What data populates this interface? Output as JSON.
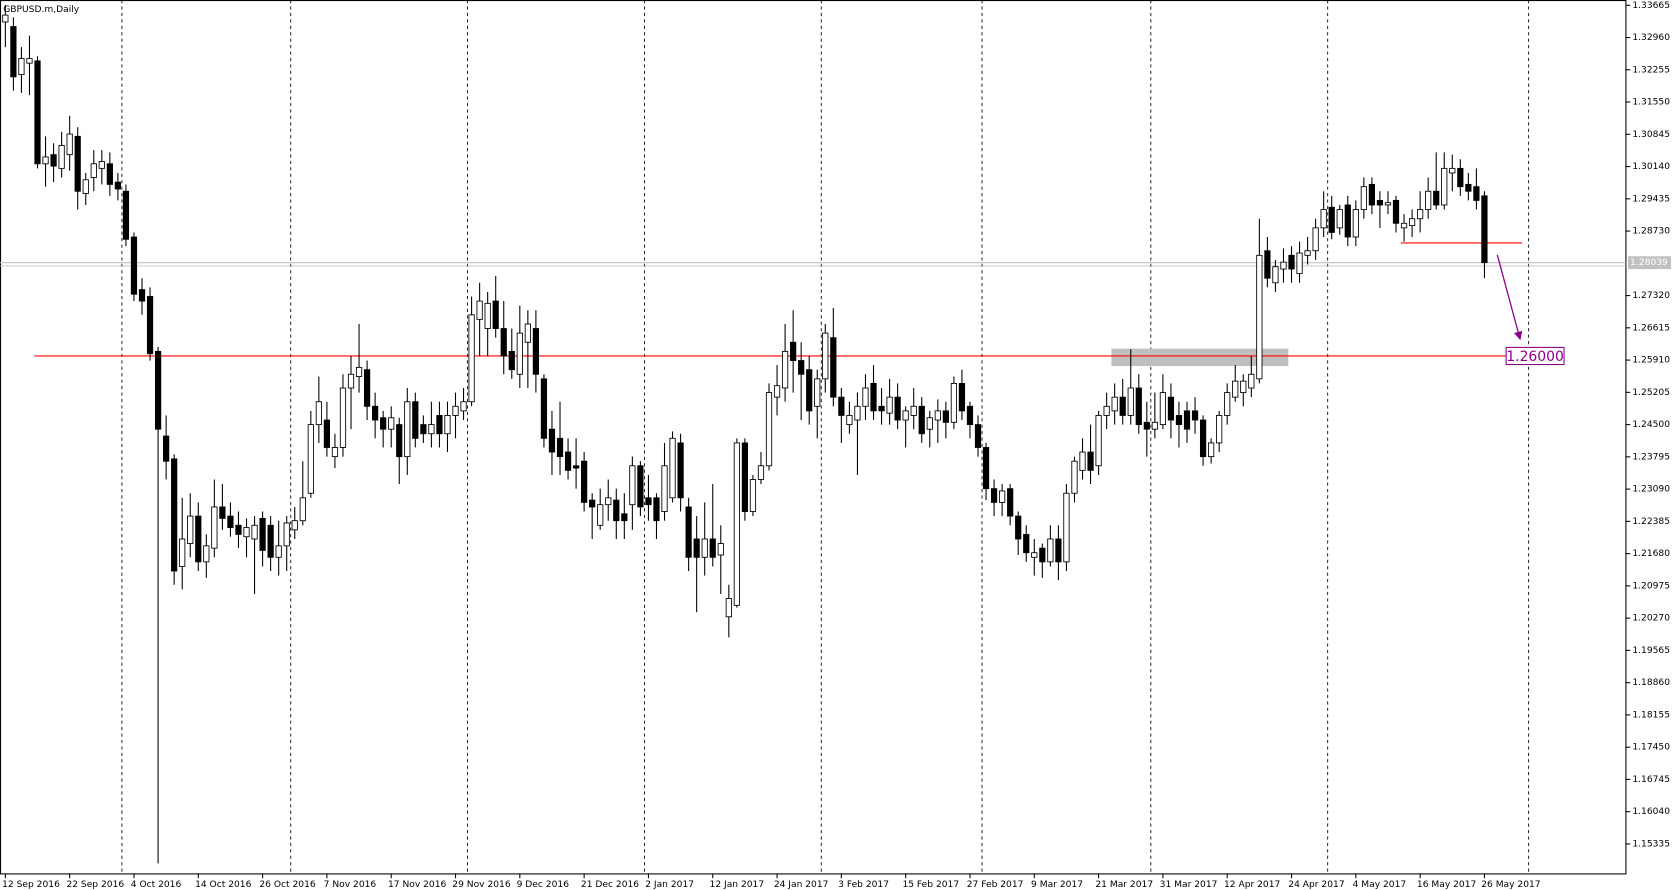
{
  "chart_data": {
    "type": "candlestick",
    "title": "GBPUSD.m,Daily",
    "categories": [
      "12 Sep 2016",
      null,
      null,
      null,
      null,
      null,
      null,
      null,
      "22 Sep 2016",
      null,
      null,
      null,
      null,
      null,
      null,
      null,
      "4 Oct 2016",
      null,
      null,
      null,
      null,
      null,
      null,
      null,
      "14 Oct 2016",
      null,
      null,
      null,
      null,
      null,
      null,
      null,
      "26 Oct 2016",
      null,
      null,
      null,
      null,
      null,
      null,
      null,
      "7 Nov 2016",
      null,
      null,
      null,
      null,
      null,
      null,
      null,
      "17 Nov 2016",
      null,
      null,
      null,
      null,
      null,
      null,
      null,
      "29 Nov 2016",
      null,
      null,
      null,
      null,
      null,
      null,
      null,
      "9 Dec 2016",
      null,
      null,
      null,
      null,
      null,
      null,
      null,
      "21 Dec 2016",
      null,
      null,
      null,
      null,
      null,
      null,
      null,
      "2 Jan 2017",
      null,
      null,
      null,
      null,
      null,
      null,
      null,
      "12 Jan 2017",
      null,
      null,
      null,
      null,
      null,
      null,
      null,
      "24 Jan 2017",
      null,
      null,
      null,
      null,
      null,
      null,
      null,
      "3 Feb 2017",
      null,
      null,
      null,
      null,
      null,
      null,
      null,
      "15 Feb 2017",
      null,
      null,
      null,
      null,
      null,
      null,
      null,
      "27 Feb 2017",
      null,
      null,
      null,
      null,
      null,
      null,
      null,
      "9 Mar 2017",
      null,
      null,
      null,
      null,
      null,
      null,
      null,
      "21 Mar 2017",
      null,
      null,
      null,
      null,
      null,
      null,
      null,
      "31 Mar 2017",
      null,
      null,
      null,
      null,
      null,
      null,
      null,
      "12 Apr 2017",
      null,
      null,
      null,
      null,
      null,
      null,
      null,
      "24 Apr 2017",
      null,
      null,
      null,
      null,
      null,
      null,
      null,
      "4 May 2017",
      null,
      null,
      null,
      null,
      null,
      null,
      null,
      "16 May 2017",
      null,
      null,
      null,
      null,
      null,
      null,
      null,
      "26 May 2017"
    ],
    "series": [
      {
        "up_color": "#ffffff",
        "down_color": "#000000",
        "outline_color": "#000000",
        "open": [
          1.333,
          1.332,
          1.3215,
          1.324,
          1.3245,
          1.302,
          1.304,
          1.301,
          1.304,
          1.308,
          1.2955,
          1.299,
          1.301,
          1.302,
          1.298,
          1.296,
          1.286,
          1.2745,
          1.273,
          1.261,
          1.2425,
          1.2375,
          1.214,
          1.219,
          1.225,
          1.215,
          1.218,
          1.227,
          1.225,
          1.223,
          1.2205,
          1.22,
          1.2245,
          1.223,
          1.216,
          1.2185,
          1.222,
          1.224,
          1.23,
          1.245,
          1.246,
          1.238,
          1.24,
          1.253,
          1.2555,
          1.257,
          1.249,
          1.2465,
          1.244,
          1.245,
          1.238,
          1.25,
          1.245,
          1.243,
          1.247,
          1.243,
          1.247,
          1.248,
          1.25,
          1.268,
          1.266,
          1.272,
          1.266,
          1.261,
          1.256,
          1.263,
          1.266,
          1.255,
          1.244,
          1.242,
          1.239,
          1.236,
          1.237,
          1.2285,
          1.223,
          1.2275,
          1.2285,
          1.2255,
          1.2275,
          1.236,
          1.229,
          1.229,
          1.226,
          1.229,
          1.241,
          1.227,
          1.22,
          1.216,
          1.22,
          1.2165,
          1.203,
          1.2055,
          1.241,
          1.226,
          1.233,
          1.236,
          1.251,
          1.253,
          1.263,
          1.259,
          1.257,
          1.249,
          1.255,
          1.264,
          1.251,
          1.245,
          1.246,
          1.249,
          1.254,
          1.249,
          1.2475,
          1.251,
          1.246,
          1.247,
          1.249,
          1.244,
          1.246,
          1.248,
          1.2455,
          1.254,
          1.249,
          1.245,
          1.24,
          1.231,
          1.228,
          1.231,
          1.225,
          1.221,
          1.216,
          1.218,
          1.215,
          1.22,
          1.215,
          1.23,
          1.235,
          1.239,
          1.236,
          1.247,
          1.248,
          1.251,
          1.247,
          1.253,
          1.2455,
          1.244,
          1.245,
          1.251,
          1.247,
          1.248,
          1.248,
          1.246,
          1.238,
          1.241,
          1.247,
          1.251,
          1.252,
          1.253,
          1.255,
          1.283,
          1.276,
          1.279,
          1.282,
          1.278,
          1.282,
          1.283,
          1.288,
          1.2925,
          1.288,
          1.293,
          1.286,
          1.292,
          1.2975,
          1.294,
          1.293,
          1.294,
          1.288,
          1.2885,
          1.29,
          1.292,
          1.296,
          1.293,
          1.3,
          1.301,
          1.2975,
          1.297,
          1.295
        ],
        "high": [
          1.3367,
          1.334,
          1.3275,
          1.33,
          1.3255,
          1.308,
          1.3065,
          1.309,
          1.3125,
          1.31,
          1.3,
          1.305,
          1.305,
          1.3045,
          1.3,
          1.2975,
          1.287,
          1.277,
          1.275,
          1.262,
          1.247,
          1.2385,
          1.229,
          1.23,
          1.228,
          1.221,
          1.233,
          1.232,
          1.228,
          1.226,
          1.2245,
          1.225,
          1.226,
          1.225,
          1.224,
          1.225,
          1.227,
          1.237,
          1.248,
          1.2555,
          1.25,
          1.243,
          1.256,
          1.26,
          1.267,
          1.259,
          1.252,
          1.248,
          1.249,
          1.2465,
          1.253,
          1.252,
          1.247,
          1.25,
          1.25,
          1.25,
          1.252,
          1.253,
          1.273,
          1.276,
          1.274,
          1.2775,
          1.272,
          1.266,
          1.271,
          1.27,
          1.27,
          1.256,
          1.248,
          1.25,
          1.242,
          1.242,
          1.239,
          1.23,
          1.231,
          1.233,
          1.231,
          1.23,
          1.238,
          1.237,
          1.234,
          1.23,
          1.241,
          1.2435,
          1.243,
          1.229,
          1.225,
          1.228,
          1.232,
          1.223,
          1.21,
          1.242,
          1.242,
          1.234,
          1.239,
          1.254,
          1.258,
          1.267,
          1.27,
          1.263,
          1.26,
          1.257,
          1.267,
          1.2705,
          1.253,
          1.25,
          1.252,
          1.256,
          1.258,
          1.253,
          1.255,
          1.254,
          1.249,
          1.253,
          1.251,
          1.248,
          1.2505,
          1.25,
          1.2555,
          1.257,
          1.25,
          1.247,
          1.241,
          1.233,
          1.232,
          1.232,
          1.226,
          1.223,
          1.22,
          1.219,
          1.223,
          1.223,
          1.232,
          1.238,
          1.242,
          1.245,
          1.248,
          1.252,
          1.254,
          1.255,
          1.2615,
          1.256,
          1.25,
          1.252,
          1.256,
          1.254,
          1.25,
          1.25,
          1.251,
          1.247,
          1.242,
          1.248,
          1.254,
          1.258,
          1.256,
          1.26,
          1.29,
          1.286,
          1.281,
          1.2835,
          1.284,
          1.285,
          1.286,
          1.29,
          1.296,
          1.295,
          1.293,
          1.295,
          1.294,
          1.299,
          1.299,
          1.296,
          1.296,
          1.295,
          1.291,
          1.292,
          1.296,
          1.299,
          1.3045,
          1.3045,
          1.304,
          1.303,
          1.3,
          1.301,
          1.296
        ],
        "low": [
          1.3275,
          1.318,
          1.3175,
          1.317,
          1.301,
          1.297,
          1.298,
          1.299,
          1.3005,
          1.292,
          1.293,
          1.296,
          1.2975,
          1.295,
          1.294,
          1.284,
          1.272,
          1.269,
          1.259,
          1.1491,
          1.233,
          1.21,
          1.209,
          1.216,
          1.213,
          1.2115,
          1.216,
          1.222,
          1.2205,
          1.218,
          1.216,
          1.208,
          1.214,
          1.213,
          1.212,
          1.213,
          1.22,
          1.223,
          1.229,
          1.241,
          1.238,
          1.2355,
          1.238,
          1.244,
          1.252,
          1.246,
          1.242,
          1.24,
          1.24,
          1.232,
          1.234,
          1.24,
          1.241,
          1.24,
          1.24,
          1.239,
          1.242,
          1.246,
          1.249,
          1.26,
          1.26,
          1.264,
          1.256,
          1.255,
          1.253,
          1.253,
          1.252,
          1.24,
          1.234,
          1.234,
          1.233,
          1.231,
          1.226,
          1.22,
          1.222,
          1.224,
          1.22,
          1.22,
          1.222,
          1.225,
          1.224,
          1.22,
          1.224,
          1.228,
          1.226,
          1.213,
          1.204,
          1.212,
          1.214,
          1.208,
          1.1985,
          1.205,
          1.224,
          1.225,
          1.232,
          1.235,
          1.247,
          1.25,
          1.252,
          1.246,
          1.245,
          1.242,
          1.252,
          1.249,
          1.241,
          1.243,
          1.234,
          1.246,
          1.246,
          1.245,
          1.245,
          1.244,
          1.24,
          1.244,
          1.241,
          1.24,
          1.241,
          1.242,
          1.244,
          1.246,
          1.242,
          1.238,
          1.2285,
          1.225,
          1.225,
          1.223,
          1.2165,
          1.215,
          1.212,
          1.2115,
          1.214,
          1.211,
          1.213,
          1.228,
          1.233,
          1.232,
          1.234,
          1.244,
          1.245,
          1.245,
          1.245,
          1.243,
          1.238,
          1.242,
          1.244,
          1.242,
          1.24,
          1.241,
          1.243,
          1.236,
          1.2365,
          1.239,
          1.245,
          1.25,
          1.249,
          1.251,
          1.254,
          1.275,
          1.274,
          1.276,
          1.276,
          1.276,
          1.28,
          1.281,
          1.286,
          1.2855,
          1.2865,
          1.284,
          1.284,
          1.29,
          1.291,
          1.288,
          1.291,
          1.287,
          1.285,
          1.286,
          1.287,
          1.29,
          1.292,
          1.292,
          1.296,
          1.295,
          1.294,
          1.292,
          1.277
        ],
        "close": [
          1.3345,
          1.321,
          1.325,
          1.325,
          1.302,
          1.3035,
          1.3015,
          1.306,
          1.3085,
          1.296,
          1.2985,
          1.302,
          1.3025,
          1.2975,
          1.2965,
          1.2855,
          1.2735,
          1.272,
          1.2605,
          1.244,
          1.237,
          1.213,
          1.22,
          1.225,
          1.215,
          1.2185,
          1.227,
          1.2245,
          1.2225,
          1.221,
          1.2225,
          1.223,
          1.2175,
          1.216,
          1.2185,
          1.2235,
          1.224,
          1.229,
          1.245,
          1.25,
          1.24,
          1.24,
          1.253,
          1.256,
          1.2575,
          1.249,
          1.246,
          1.244,
          1.2465,
          1.238,
          1.25,
          1.242,
          1.243,
          1.245,
          1.243,
          1.247,
          1.249,
          1.25,
          1.269,
          1.272,
          1.2715,
          1.266,
          1.26,
          1.257,
          1.265,
          1.267,
          1.256,
          1.242,
          1.239,
          1.238,
          1.235,
          1.2355,
          1.228,
          1.227,
          1.2275,
          1.229,
          1.224,
          1.224,
          1.236,
          1.227,
          1.2275,
          1.224,
          1.236,
          1.242,
          1.229,
          1.216,
          1.216,
          1.22,
          1.216,
          1.219,
          1.207,
          1.241,
          1.226,
          1.233,
          1.236,
          1.252,
          1.2535,
          1.261,
          1.259,
          1.256,
          1.248,
          1.255,
          1.265,
          1.251,
          1.247,
          1.247,
          1.249,
          1.253,
          1.248,
          1.248,
          1.251,
          1.246,
          1.248,
          1.249,
          1.243,
          1.2465,
          1.248,
          1.2455,
          1.254,
          1.248,
          1.245,
          1.24,
          1.231,
          1.228,
          1.2305,
          1.225,
          1.22,
          1.217,
          1.217,
          1.215,
          1.22,
          1.215,
          1.23,
          1.237,
          1.239,
          1.235,
          1.247,
          1.249,
          1.251,
          1.247,
          1.253,
          1.245,
          1.244,
          1.2455,
          1.252,
          1.246,
          1.245,
          1.244,
          1.246,
          1.238,
          1.241,
          1.247,
          1.252,
          1.2545,
          1.2545,
          1.256,
          1.282,
          1.277,
          1.2795,
          1.2805,
          1.279,
          1.2825,
          1.283,
          1.288,
          1.292,
          1.287,
          1.292,
          1.286,
          1.292,
          1.297,
          1.293,
          1.293,
          1.2935,
          1.289,
          1.289,
          1.29,
          1.292,
          1.296,
          1.293,
          1.301,
          1.301,
          1.297,
          1.296,
          1.294,
          1.2804
        ]
      }
    ],
    "ylim": [
      1.1468,
      1.3378
    ],
    "yticks": [
      1.33665,
      {
        "value": 1.3296,
        "label": "1.32960"
      },
      1.32255,
      {
        "value": 1.3155,
        "label": "1.31550"
      },
      1.30845,
      {
        "value": 1.3014,
        "label": "1.30140"
      },
      1.29435,
      {
        "value": 1.2873,
        "label": "1.28730"
      },
      {
        "value": 1.2732,
        "label": "1.27320"
      },
      1.26615,
      {
        "value": 1.2591,
        "label": "1.25910"
      },
      1.25205,
      {
        "value": 1.245,
        "label": "1.24500"
      },
      1.23795,
      {
        "value": 1.2309,
        "label": "1.23090"
      },
      1.22385,
      {
        "value": 1.2168,
        "label": "1.21680"
      },
      1.20975,
      {
        "value": 1.2027,
        "label": "1.20270"
      },
      1.19565,
      {
        "value": 1.1886,
        "label": "1.18860"
      },
      1.18155,
      {
        "value": 1.1745,
        "label": "1.17450"
      },
      1.16745,
      {
        "value": 1.1604,
        "label": "1.16040"
      },
      1.15335
    ],
    "separators": [
      15,
      36,
      58,
      80,
      102,
      122,
      143,
      165,
      190
    ],
    "current_price": 1.28039,
    "current_price_color": "#c0c0c0",
    "levels": [
      {
        "value": 1.26,
        "label": "1.26000",
        "from": 3.6,
        "to": 186.7,
        "color": "#ff0000",
        "label_color": "#8b008b"
      },
      {
        "value": 1.2847,
        "from": 173.6,
        "to": 188.7,
        "color": "#ff0000"
      }
    ],
    "zone": {
      "from": 137.6,
      "to": 159.6,
      "low": 1.2578,
      "high": 1.2616,
      "color": "#c0c0c0"
    },
    "arrow": {
      "from": [
        185.6,
        1.2821
      ],
      "to": [
        188.4,
        1.2639
      ],
      "color": "#8b008b"
    }
  }
}
